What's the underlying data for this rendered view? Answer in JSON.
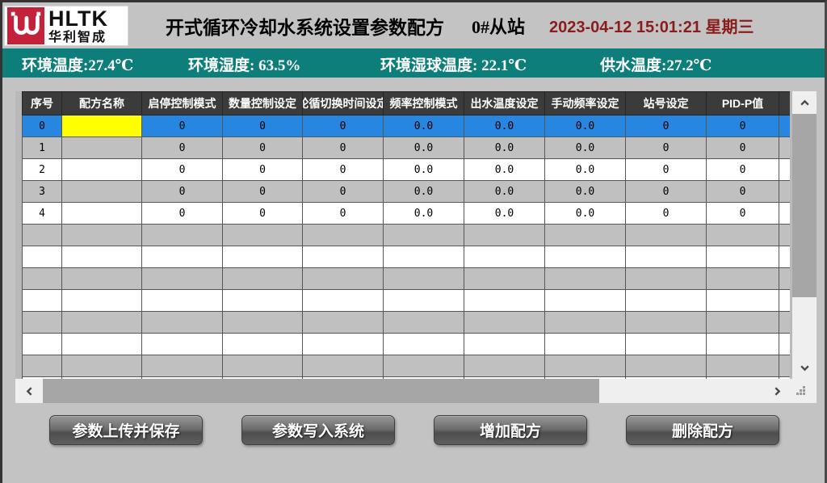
{
  "header": {
    "logo": {
      "brand": "HLTK",
      "company": "华利智成",
      "icon": "hltk-logo"
    },
    "title": "开式循环冷却水系统设置参数配方",
    "station": "0#从站",
    "datetime": "2023-04-12 15:01:21 星期三"
  },
  "env_bar": {
    "ambient_temp": "环境温度:27.4℃",
    "ambient_humidity": "环境湿度: 63.5%",
    "wet_bulb_temp": "环境湿球温度: 22.1℃",
    "supply_water_temp": "供水温度:27.2℃"
  },
  "table": {
    "columns": [
      "序号",
      "配方名称",
      "启停控制模式",
      "数量控制设定",
      "轮循切换时间设定",
      "频率控制模式",
      "出水温度设定",
      "手动频率设定",
      "站号设定",
      "PID-P值"
    ],
    "rows": [
      {
        "cells": [
          "0",
          "",
          "0",
          "0",
          "0",
          "0.0",
          "0.0",
          "0.0",
          "0",
          "0"
        ],
        "selected": true,
        "editing_cell": 1
      },
      {
        "cells": [
          "1",
          "",
          "0",
          "0",
          "0",
          "0.0",
          "0.0",
          "0.0",
          "0",
          "0"
        ]
      },
      {
        "cells": [
          "2",
          "",
          "0",
          "0",
          "0",
          "0.0",
          "0.0",
          "0.0",
          "0",
          "0"
        ]
      },
      {
        "cells": [
          "3",
          "",
          "0",
          "0",
          "0",
          "0.0",
          "0.0",
          "0.0",
          "0",
          "0"
        ]
      },
      {
        "cells": [
          "4",
          "",
          "0",
          "0",
          "0",
          "0.0",
          "0.0",
          "0.0",
          "0",
          "0"
        ]
      }
    ],
    "empty_rows": 8
  },
  "scrollbars": {
    "up_icon": "chevron-up",
    "down_icon": "chevron-down",
    "left_icon": "chevron-left",
    "right_icon": "chevron-right",
    "resize_grip": "resize-grip"
  },
  "buttons": {
    "upload_save": "参数上传并保存",
    "write_system": "参数写入系统",
    "add_recipe": "增加配方",
    "delete_recipe": "删除配方"
  },
  "colors": {
    "selected_row": "#2787e0",
    "editing_cell": "#ffff00",
    "env_bar_bg": "#0e7e7a",
    "datetime_red": "#8b1c1c",
    "table_header_bg": "#3b3b3b",
    "logo_red": "#c4223a"
  }
}
